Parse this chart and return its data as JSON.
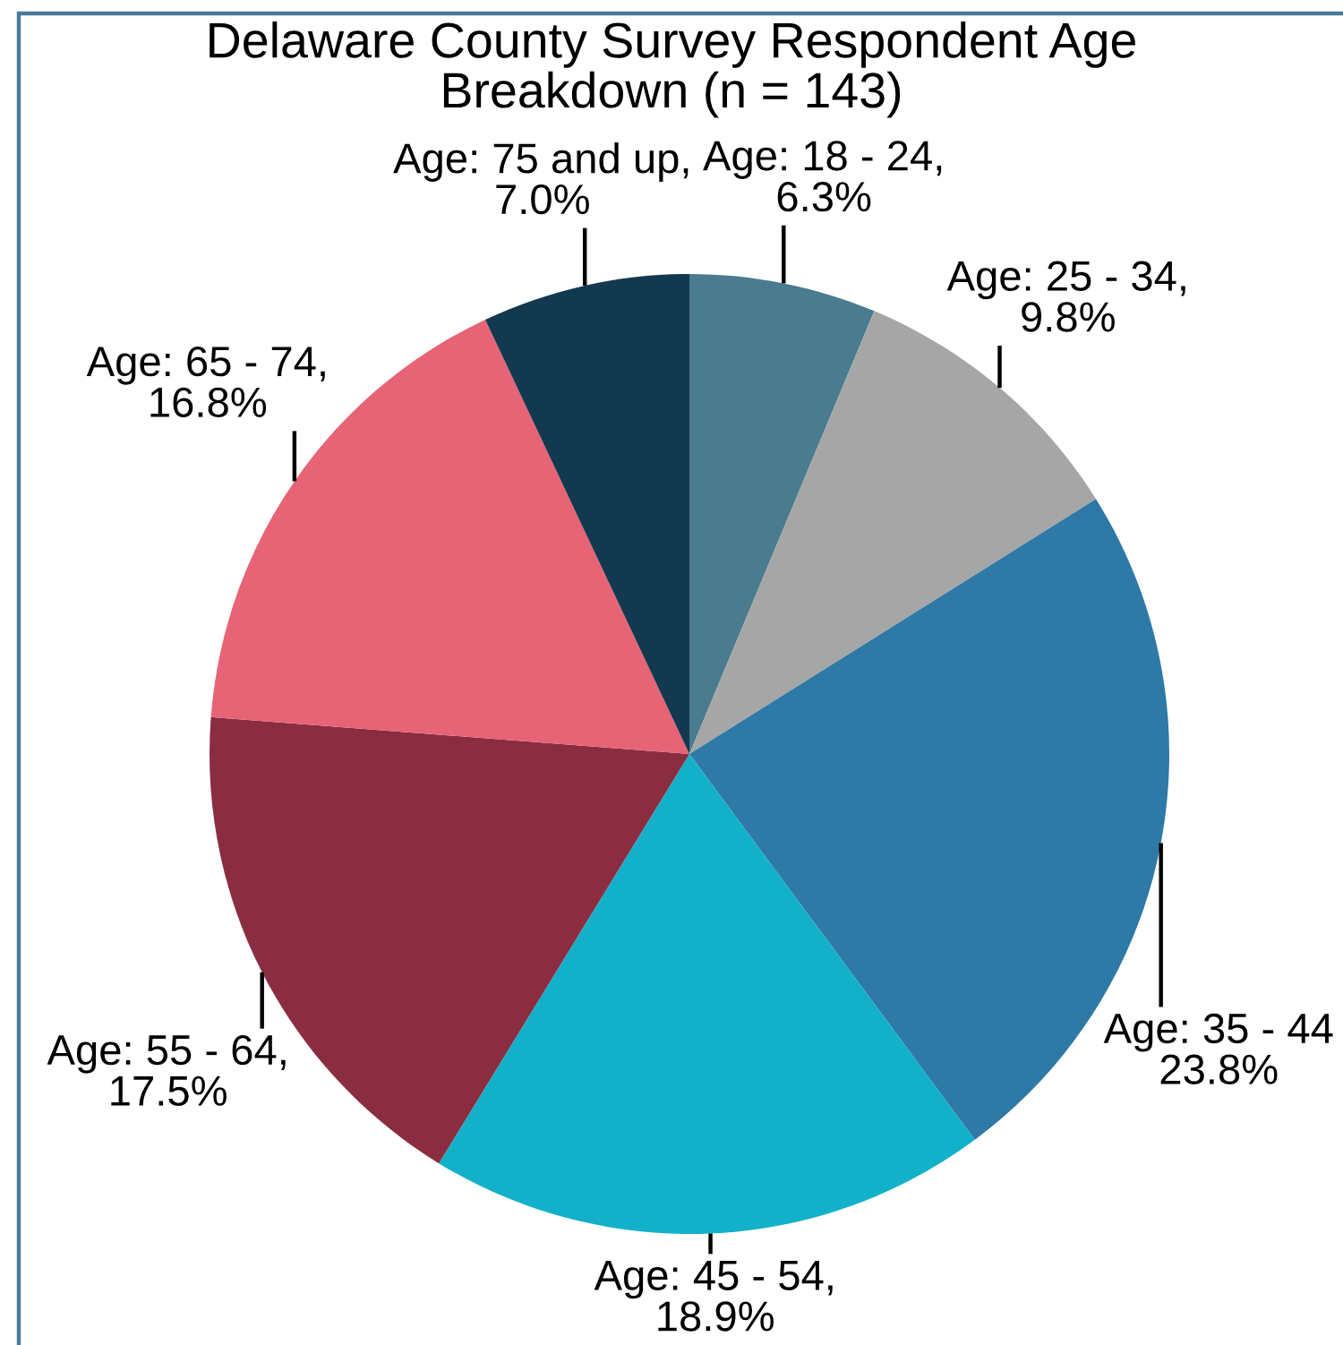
{
  "chart_data": {
    "type": "pie",
    "title": "Delaware County Survey Respondent Age\nBreakdown (n = 143)",
    "categories": [
      "Age: 18 - 24,\n6.3%",
      "Age: 25 - 34,\n9.8%",
      "Age: 35 - 44\n23.8%",
      "Age: 45 - 54,\n18.9%",
      "Age: 55 - 64,\n17.5%",
      "Age: 65 - 74,\n16.8%",
      "Age: 75 and up,\n7.0%"
    ],
    "values": [
      6.3,
      9.8,
      23.8,
      18.9,
      17.5,
      16.8,
      7.0
    ],
    "colors": [
      "#4a7b8f",
      "#a6a6a6",
      "#2e79a6",
      "#13b1c9",
      "#8b2d41",
      "#e66476",
      "#12394f"
    ]
  }
}
